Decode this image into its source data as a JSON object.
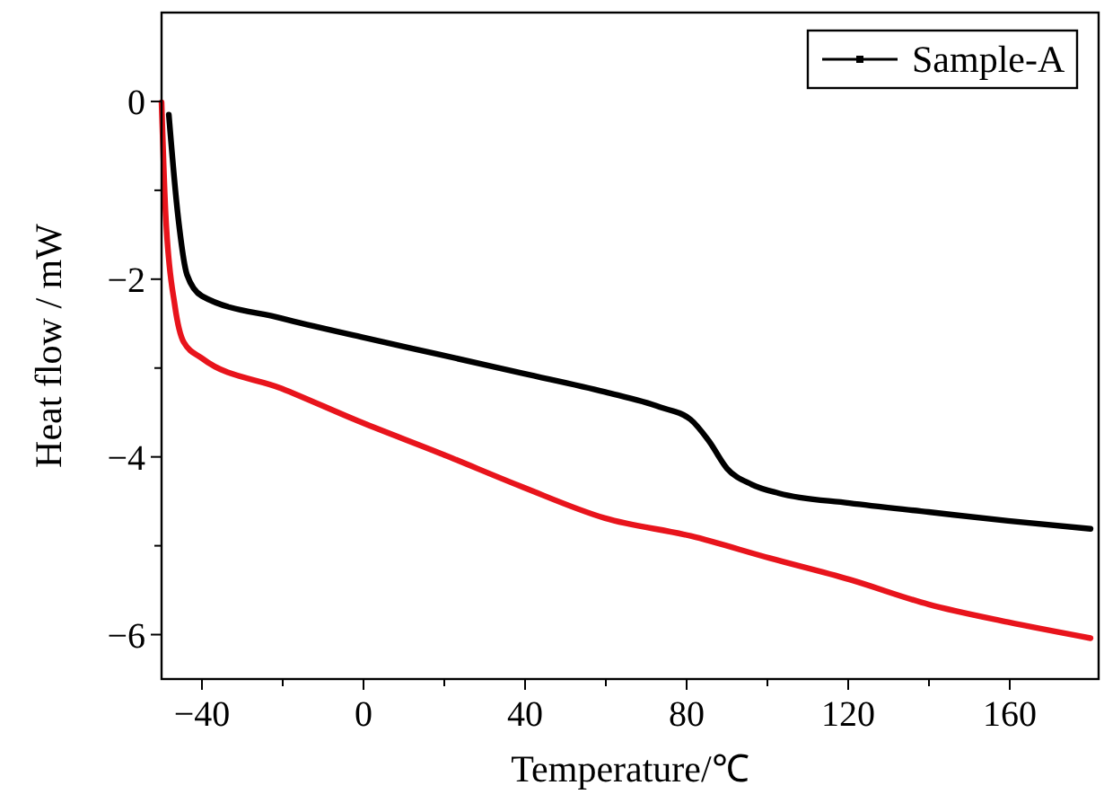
{
  "chart_data": {
    "type": "line",
    "xlabel": "Temperature/℃",
    "ylabel": "Heat flow / mW",
    "xlim": [
      -50,
      182
    ],
    "ylim": [
      -6.5,
      1
    ],
    "xticks": [
      {
        "value": -40,
        "label": "−40"
      },
      {
        "value": -20,
        "label": null
      },
      0,
      {
        "value": 20,
        "label": null
      },
      40,
      {
        "value": 60,
        "label": null
      },
      80,
      {
        "value": 100,
        "label": null
      },
      120,
      {
        "value": 140,
        "label": null
      },
      160
    ],
    "yticks": [
      {
        "value": -6,
        "label": "−6"
      },
      {
        "value": -5,
        "label": null
      },
      {
        "value": -4,
        "label": "−4"
      },
      {
        "value": -3,
        "label": null
      },
      {
        "value": -2,
        "label": "−2"
      },
      {
        "value": -1,
        "label": null
      },
      0
    ],
    "legend": "top right",
    "grid": false,
    "line_style": "solid",
    "series": [
      {
        "name": "Sample-A",
        "color": "#000000",
        "x": [
          -48.2,
          -46,
          -43.7,
          -40,
          -20.3,
          -0.6,
          19,
          39.4,
          59.8,
          73.4,
          81,
          85.5,
          90,
          96.1,
          102.9,
          120.3,
          139.9,
          159.6,
          180
        ],
        "values": [
          -0.15,
          -1.26,
          -1.95,
          -2.19,
          -2.44,
          -2.65,
          -2.85,
          -3.06,
          -3.27,
          -3.44,
          -3.58,
          -3.82,
          -4.13,
          -4.31,
          -4.41,
          -4.52,
          -4.62,
          -4.72,
          -4.81
        ]
      },
      {
        "color": "#e8141c",
        "x": [
          -50,
          -49,
          -46.7,
          -44.5,
          -40,
          -20.3,
          -0.6,
          19,
          39.4,
          59.8,
          81,
          100.6,
          120.3,
          139.9,
          159.6,
          180
        ],
        "values": [
          -0.01,
          -1.26,
          -2.3,
          -2.71,
          -2.89,
          -3.23,
          -3.61,
          -3.96,
          -4.34,
          -4.69,
          -4.89,
          -5.14,
          -5.38,
          -5.66,
          -5.86,
          -6.04
        ]
      }
    ]
  }
}
